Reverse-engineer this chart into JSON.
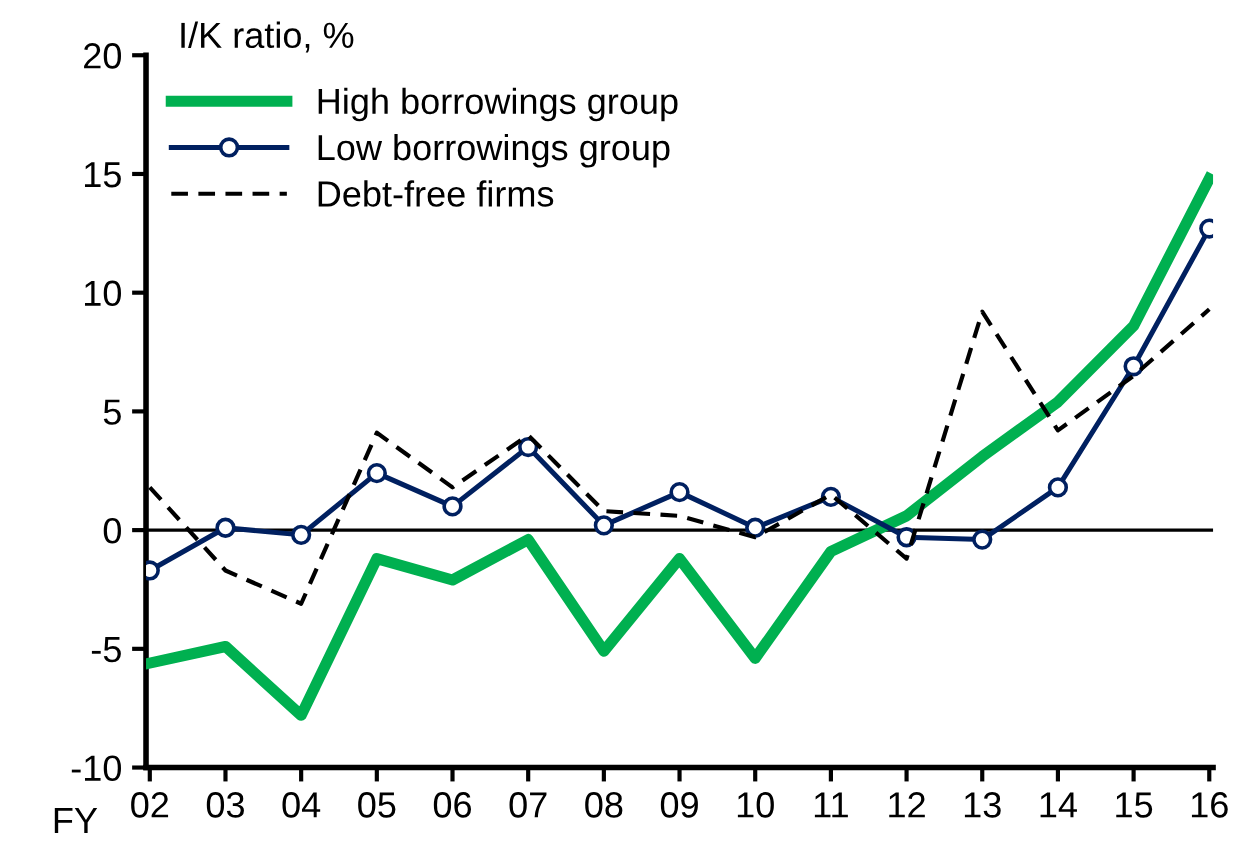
{
  "chart_data": {
    "type": "line",
    "ylabel": "I/K ratio, %",
    "xlabel": "FY",
    "categories": [
      "02",
      "03",
      "04",
      "05",
      "06",
      "07",
      "08",
      "09",
      "10",
      "11",
      "12",
      "13",
      "14",
      "15",
      "16"
    ],
    "series": [
      {
        "name": "High borrowings group",
        "color": "#00b050",
        "marker": "none",
        "line_style": "solid",
        "values": [
          -5.6,
          -4.9,
          -7.8,
          -1.2,
          -2.1,
          -0.4,
          -5.1,
          -1.2,
          -5.4,
          -0.9,
          0.6,
          3.1,
          5.4,
          8.6,
          14.8
        ]
      },
      {
        "name": "Low borrowings group",
        "color": "#002060",
        "marker": "circle",
        "line_style": "solid",
        "values": [
          -1.7,
          0.1,
          -0.2,
          2.4,
          1.0,
          3.5,
          0.2,
          1.6,
          0.1,
          1.4,
          -0.3,
          -0.4,
          1.8,
          6.9,
          12.7
        ]
      },
      {
        "name": "Debt-free firms",
        "color": "#000000",
        "marker": "none",
        "line_style": "dashed",
        "values": [
          1.8,
          -1.7,
          -3.1,
          4.1,
          1.8,
          4.0,
          0.8,
          0.6,
          -0.3,
          1.5,
          -1.2,
          9.2,
          4.2,
          6.5,
          9.3
        ]
      }
    ],
    "ylim": [
      -10,
      20
    ],
    "yticks": [
      -10,
      -5,
      0,
      5,
      10,
      15,
      20
    ],
    "grid": false,
    "legend": "top left",
    "ref_lines": [
      {
        "axis": "y",
        "value": 0,
        "color": "#000000"
      }
    ]
  }
}
